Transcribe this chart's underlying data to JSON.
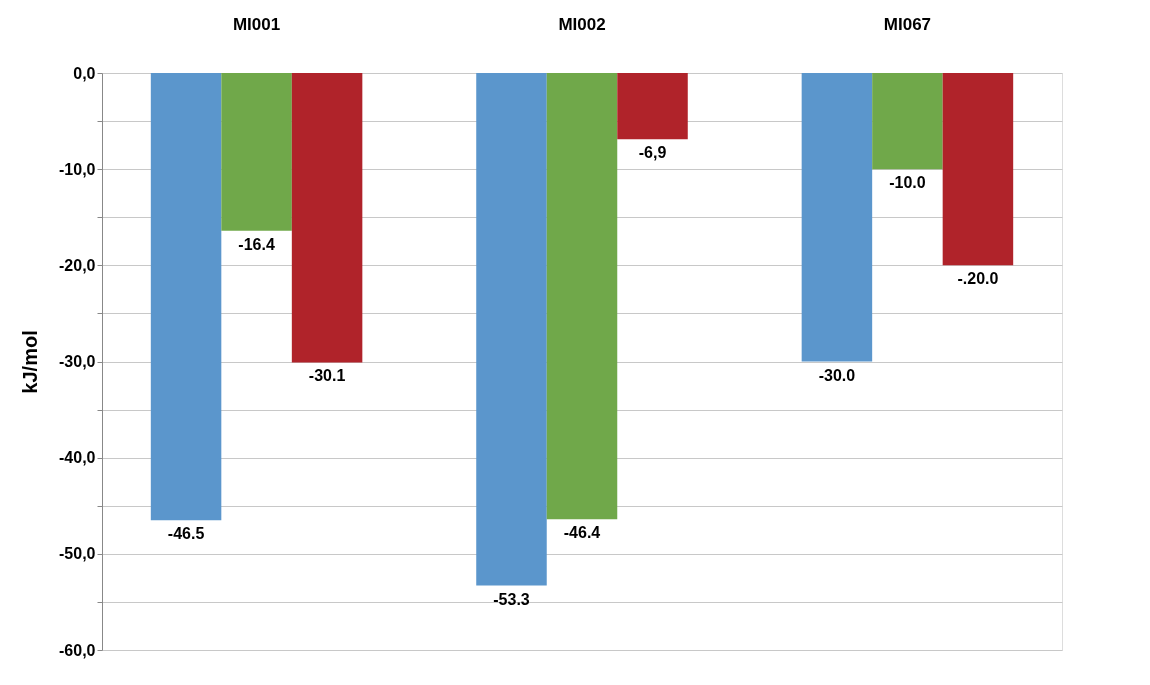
{
  "chart_data": {
    "type": "bar",
    "ylabel": "kJ/mol",
    "categories": [
      "MI001",
      "MI002",
      "MI067"
    ],
    "series": [
      {
        "color": "#5b96cc",
        "values": [
          -46.5,
          -53.3,
          -30.0
        ],
        "value_labels": [
          "-46.5",
          "-53.3",
          "-30.0"
        ]
      },
      {
        "color": "#70a84a",
        "values": [
          -16.4,
          -46.4,
          -10.0
        ],
        "value_labels": [
          "-16.4",
          "-46.4",
          "-10.0"
        ]
      },
      {
        "color": "#b0232a",
        "values": [
          -30.1,
          -6.9,
          -20.0
        ],
        "value_labels": [
          "-30.1",
          "-6,9",
          "-.20.0"
        ]
      }
    ],
    "ylim": [
      -60,
      0
    ],
    "yticks": [
      {
        "value": 0,
        "label": "0,0"
      },
      {
        "value": -5,
        "label": null
      },
      {
        "value": -10,
        "label": "-10,0"
      },
      {
        "value": -15,
        "label": null
      },
      {
        "value": -20,
        "label": "-20,0"
      },
      {
        "value": -25,
        "label": null
      },
      {
        "value": -30,
        "label": "-30,0"
      },
      {
        "value": -35,
        "label": null
      },
      {
        "value": -40,
        "label": "-40,0"
      },
      {
        "value": -45,
        "label": null
      },
      {
        "value": -50,
        "label": "-50,0"
      },
      {
        "value": -55,
        "label": null
      },
      {
        "value": -60,
        "label": "-60,0"
      }
    ],
    "grid": "y",
    "legend": false
  }
}
